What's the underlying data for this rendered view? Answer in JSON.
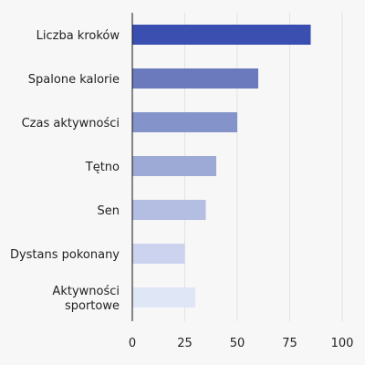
{
  "chart_data": {
    "type": "bar",
    "orientation": "horizontal",
    "categories": [
      [
        "Liczba kroków"
      ],
      [
        "Spalone kalorie"
      ],
      [
        "Czas aktywności"
      ],
      [
        "Tętno"
      ],
      [
        "Sen"
      ],
      [
        "Dystans pokonany"
      ],
      [
        "Aktywności",
        "sportowe"
      ]
    ],
    "values": [
      85,
      60,
      50,
      40,
      35,
      25,
      30
    ],
    "colors": [
      "#3a4fb0",
      "#6b7abd",
      "#8593cb",
      "#9eaad6",
      "#b4bde2",
      "#cbd3ee",
      "#dfe6f6"
    ],
    "xlim": [
      0,
      100
    ],
    "xticks": [
      0,
      25,
      50,
      75,
      100
    ],
    "grid": true,
    "title": "",
    "xlabel": "",
    "ylabel": ""
  }
}
